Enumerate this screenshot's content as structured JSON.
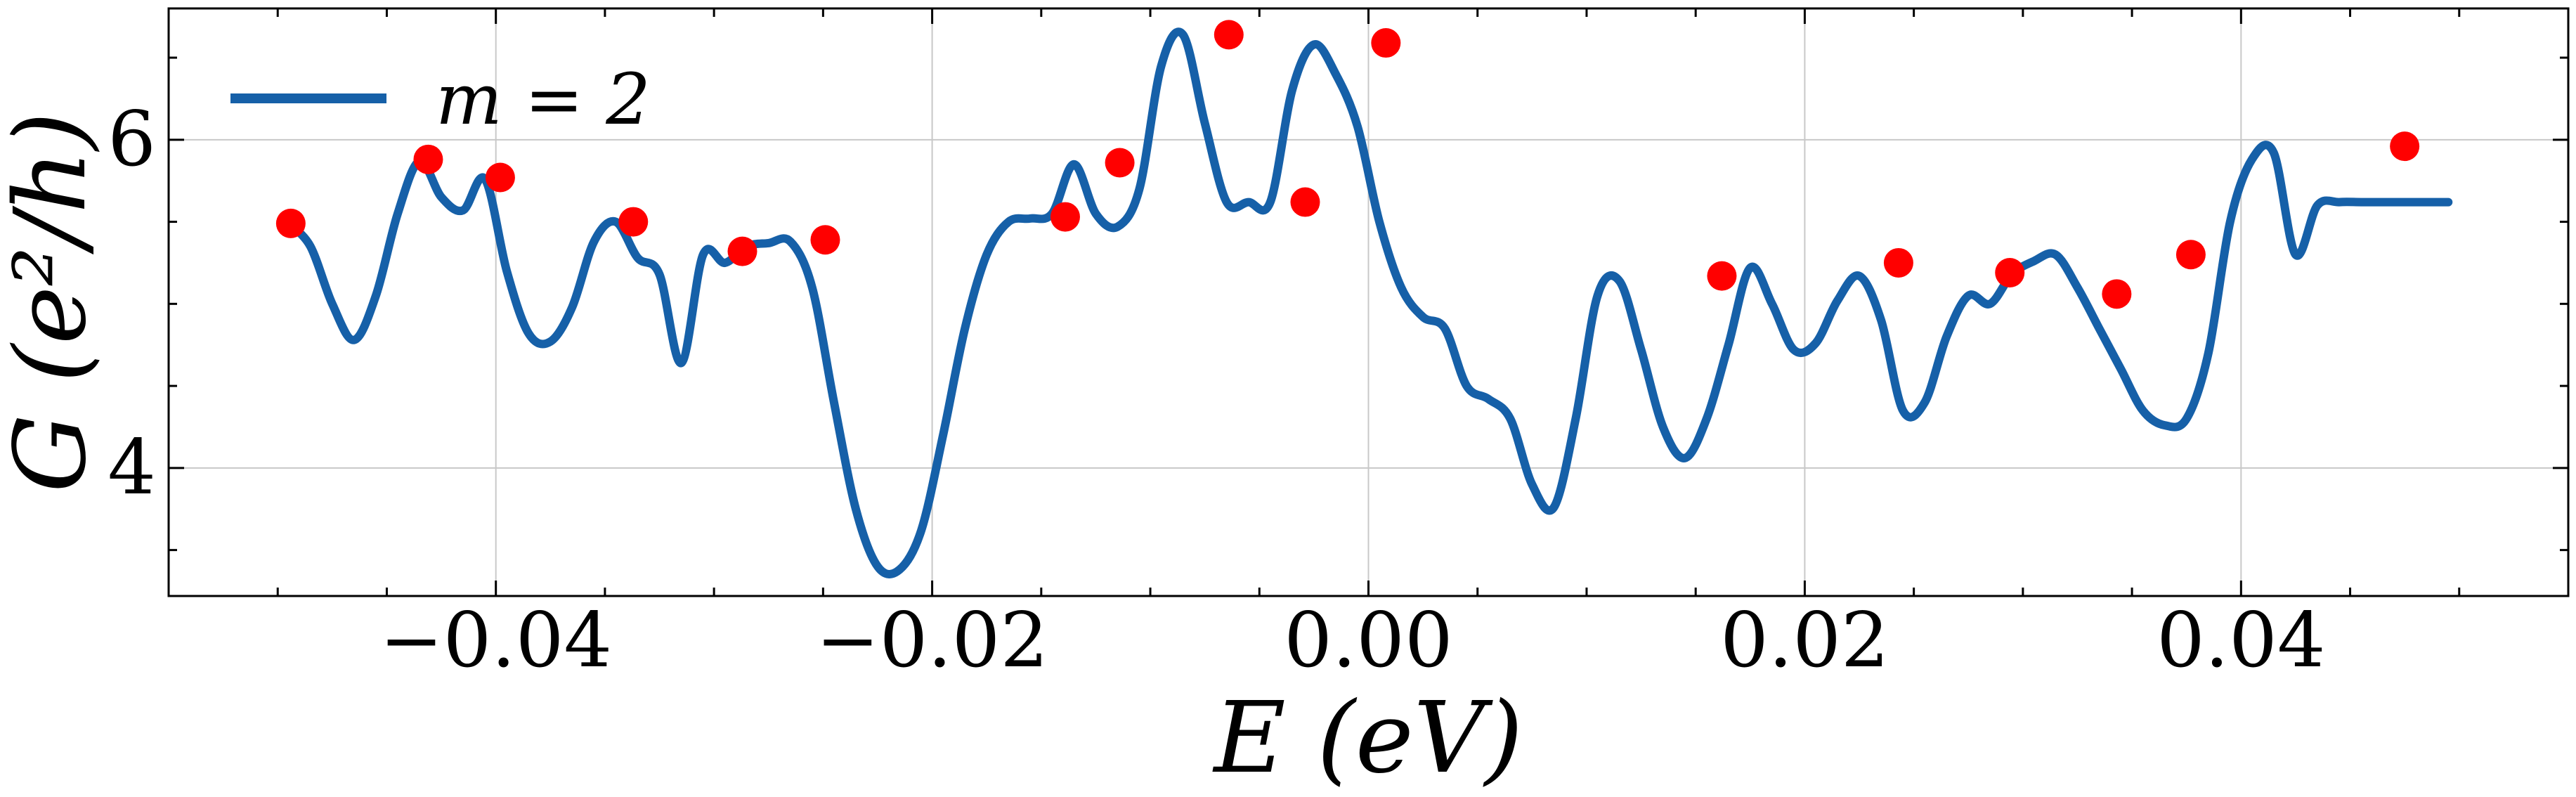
{
  "chart_data": {
    "type": "line",
    "xlabel": "E (eV)",
    "ylabel": "G (e²/h)",
    "xlim": [
      -0.055,
      0.055
    ],
    "ylim": [
      3.22,
      6.8
    ],
    "xticks": [
      -0.04,
      -0.02,
      0.0,
      0.02,
      0.04
    ],
    "xtick_labels": [
      "−0.04",
      "−0.02",
      "0.00",
      "0.02",
      "0.04"
    ],
    "yticks": [
      4,
      6
    ],
    "ytick_labels": [
      "4",
      "6"
    ],
    "grid": true,
    "legend": {
      "position": "top-left",
      "entries": [
        "m = 2"
      ]
    },
    "colors": {
      "line": "#1660a8",
      "peaks": "#ff0000"
    },
    "series": [
      {
        "name": "m = 2",
        "x": [
          -0.0495,
          -0.0485,
          -0.0475,
          -0.0465,
          -0.0455,
          -0.0445,
          -0.0435,
          -0.0425,
          -0.0415,
          -0.0405,
          -0.0395,
          -0.0385,
          -0.0375,
          -0.0365,
          -0.0355,
          -0.0345,
          -0.0335,
          -0.0325,
          -0.0315,
          -0.0305,
          -0.0295,
          -0.0285,
          -0.0275,
          -0.0265,
          -0.0255,
          -0.0245,
          -0.0235,
          -0.0225,
          -0.0215,
          -0.0205,
          -0.0195,
          -0.0185,
          -0.0175,
          -0.0165,
          -0.0155,
          -0.0145,
          -0.0135,
          -0.0125,
          -0.0115,
          -0.0105,
          -0.0095,
          -0.0085,
          -0.0075,
          -0.0065,
          -0.0055,
          -0.0045,
          -0.0035,
          -0.0025,
          -0.0015,
          -0.0005,
          0.0005,
          0.0015,
          0.0025,
          0.0035,
          0.0045,
          0.0055,
          0.0065,
          0.0075,
          0.0085,
          0.0095,
          0.0105,
          0.0115,
          0.0125,
          0.0135,
          0.0145,
          0.0155,
          0.0165,
          0.0175,
          0.0185,
          0.0195,
          0.0205,
          0.0215,
          0.0225,
          0.0235,
          0.0245,
          0.0255,
          0.0265,
          0.0275,
          0.0285,
          0.0295,
          0.0305,
          0.0315,
          0.0325,
          0.0335,
          0.0345,
          0.0355,
          0.0365,
          0.0375,
          0.0385,
          0.0395,
          0.0405,
          0.0415,
          0.0425,
          0.0435,
          0.0445,
          0.0455,
          0.0465,
          0.0475,
          0.0485,
          0.0495
        ],
        "y": [
          5.49,
          5.35,
          5.0,
          4.78,
          5.05,
          5.55,
          5.87,
          5.65,
          5.57,
          5.76,
          5.2,
          4.82,
          4.77,
          4.98,
          5.38,
          5.5,
          5.28,
          5.18,
          4.64,
          5.3,
          5.25,
          5.35,
          5.37,
          5.38,
          5.1,
          4.4,
          3.75,
          3.4,
          3.38,
          3.62,
          4.2,
          4.85,
          5.3,
          5.5,
          5.52,
          5.55,
          5.85,
          5.55,
          5.47,
          5.7,
          6.45,
          6.64,
          6.1,
          5.62,
          5.62,
          5.62,
          6.3,
          6.58,
          6.4,
          6.08,
          5.5,
          5.1,
          4.92,
          4.85,
          4.5,
          4.42,
          4.3,
          3.9,
          3.76,
          4.3,
          5.05,
          5.14,
          4.72,
          4.25,
          4.06,
          4.3,
          4.75,
          5.22,
          5.0,
          4.72,
          4.76,
          5.02,
          5.17,
          4.9,
          4.35,
          4.4,
          4.8,
          5.05,
          5.0,
          5.18,
          5.26,
          5.3,
          5.1,
          4.85,
          4.6,
          4.35,
          4.26,
          4.3,
          4.7,
          5.5,
          5.88,
          5.92,
          5.3,
          5.6,
          5.62,
          5.62,
          5.62,
          5.62,
          5.62,
          5.62
        ]
      }
    ],
    "peaks": {
      "x": [
        -0.0494,
        -0.0431,
        -0.0398,
        -0.0337,
        -0.0287,
        -0.0249,
        -0.0139,
        -0.0114,
        -0.0064,
        -0.0029,
        0.0008,
        0.0162,
        0.0243,
        0.0294,
        0.0343,
        0.0377,
        0.0475
      ],
      "y": [
        5.49,
        5.88,
        5.77,
        5.5,
        5.32,
        5.39,
        5.53,
        5.86,
        6.64,
        5.62,
        6.59,
        5.17,
        5.25,
        5.19,
        5.06,
        5.3,
        5.96
      ]
    }
  }
}
